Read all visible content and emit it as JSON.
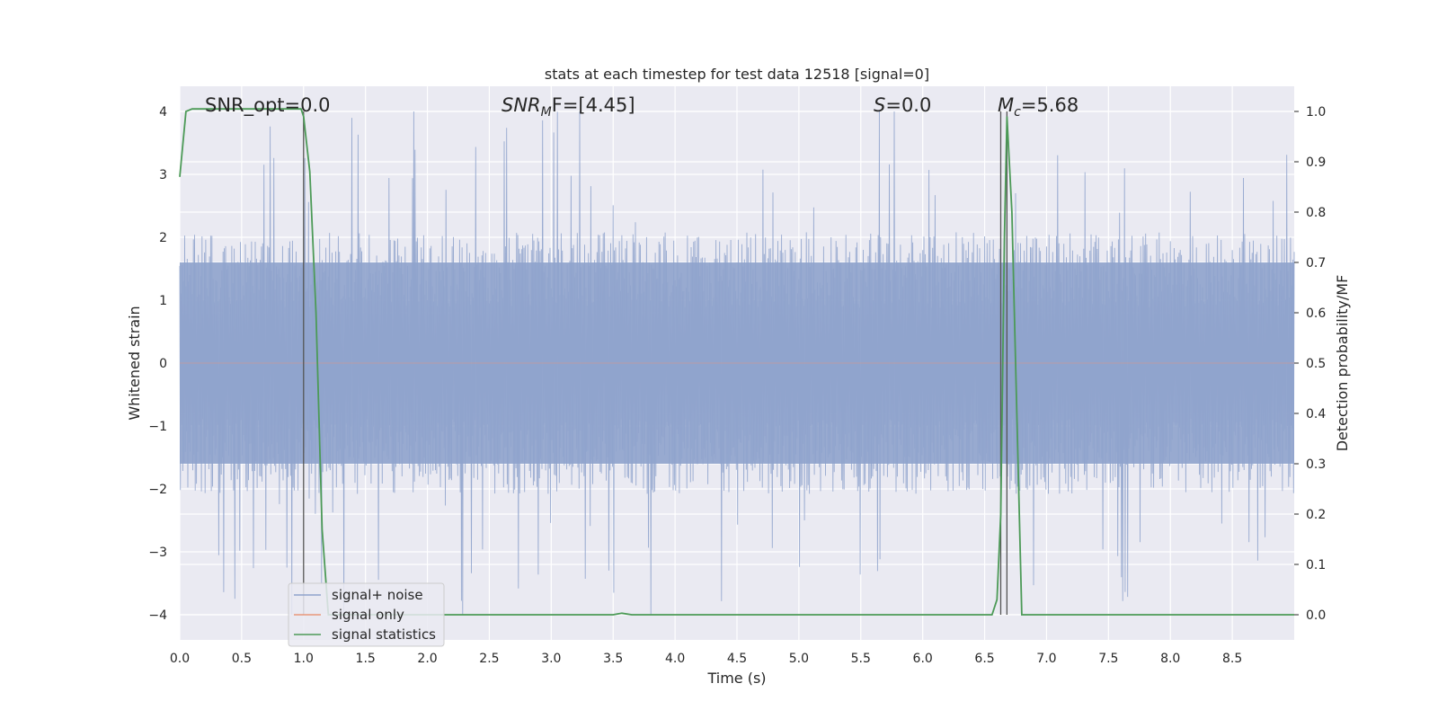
{
  "chart_data": {
    "type": "line",
    "title": "stats at each timestep for test data 12518 [signal=0]",
    "xlabel": "Time (s)",
    "ylabel_left": "Whitened strain",
    "ylabel_right": "Detection probability/MF",
    "xlim": [
      0.0,
      9.0
    ],
    "ylim_left": [
      -4.4,
      4.4
    ],
    "ylim_right": [
      -0.05,
      1.05
    ],
    "xticks": [
      "0.0",
      "0.5",
      "1.0",
      "1.5",
      "2.0",
      "2.5",
      "3.0",
      "3.5",
      "4.0",
      "4.5",
      "5.0",
      "5.5",
      "6.0",
      "6.5",
      "7.0",
      "7.5",
      "8.0",
      "8.5"
    ],
    "yticks_left": [
      "4",
      "3",
      "2",
      "1",
      "0",
      "−1",
      "−2",
      "−3",
      "−4"
    ],
    "yticks_right": [
      "1.0",
      "0.9",
      "0.8",
      "0.7",
      "0.6",
      "0.5",
      "0.4",
      "0.3",
      "0.2",
      "0.1",
      "0.0"
    ],
    "grid": true,
    "annotations": {
      "snr_opt": "SNR_opt=0.0",
      "snr_mf_base": "SNR",
      "snr_mf_sub": "M",
      "snr_mf_tail": "F=[4.45]",
      "s_base": "S",
      "s_tail": "=0.0",
      "mc_base": "M",
      "mc_sub": "c",
      "mc_tail": "=5.68"
    },
    "vertical_lines_x": [
      1.0,
      6.63,
      6.68
    ],
    "series": [
      {
        "name": "signal+ noise",
        "color": "#8fa3cc",
        "axis": "left",
        "description_values": {
          "x_range": [
            0.0,
            9.0
          ],
          "typical_envelope": [
            -1.6,
            1.6
          ],
          "peaks_max": 4.0,
          "peaks_min": -3.9
        }
      },
      {
        "name": "signal only",
        "color": "#e8967a",
        "axis": "left",
        "x": [
          0.0,
          9.0
        ],
        "y": [
          0.0,
          0.0
        ]
      },
      {
        "name": "signal statistics",
        "color": "#4c9a57",
        "axis": "right",
        "x": [
          0.0,
          0.05,
          0.1,
          0.2,
          0.5,
          0.9,
          0.98,
          1.0,
          1.05,
          1.1,
          1.15,
          1.2,
          2.0,
          3.0,
          3.5,
          3.57,
          3.65,
          4.0,
          5.0,
          6.0,
          6.56,
          6.6,
          6.63,
          6.66,
          6.68,
          6.72,
          6.75,
          6.8,
          7.0,
          8.0,
          9.0
        ],
        "y": [
          0.87,
          1.0,
          1.005,
          1.005,
          1.005,
          1.005,
          1.005,
          0.99,
          0.88,
          0.6,
          0.17,
          0.0,
          0.0,
          0.0,
          0.0,
          0.003,
          0.0,
          0.0,
          0.0,
          0.0,
          0.0,
          0.03,
          0.2,
          0.75,
          0.99,
          0.8,
          0.5,
          0.0,
          0.0,
          0.0,
          0.0
        ]
      }
    ],
    "legend": {
      "placement": "lower-left",
      "entries": [
        "signal+ noise",
        "signal only",
        "signal statistics"
      ]
    }
  }
}
